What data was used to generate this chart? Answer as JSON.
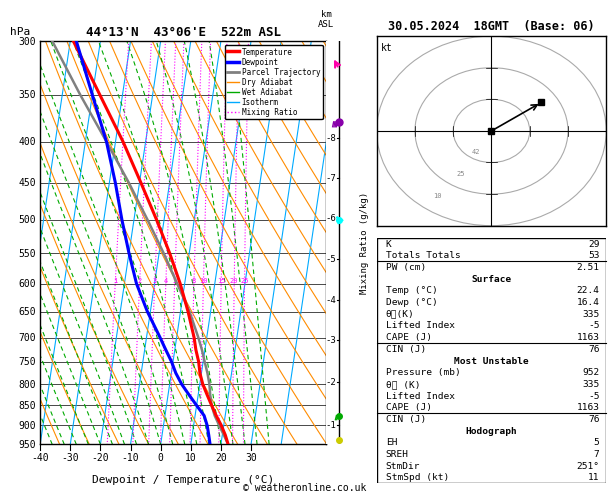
{
  "title_left": "44°13'N  43°06'E  522m ASL",
  "title_right": "30.05.2024  18GMT  (Base: 06)",
  "xlabel": "Dewpoint / Temperature (°C)",
  "ylabel_left": "hPa",
  "ylabel_right": "km\nASL",
  "ylabel_mix": "Mixing Ratio (g/kg)",
  "x_min": -40,
  "x_max": 35,
  "p_min": 300,
  "p_max": 950,
  "pressure_ticks": [
    300,
    350,
    400,
    450,
    500,
    550,
    600,
    650,
    700,
    750,
    800,
    850,
    900,
    950
  ],
  "x_ticks": [
    -40,
    -30,
    -20,
    -10,
    0,
    10,
    20,
    30
  ],
  "km_ticks": [
    1,
    2,
    3,
    4,
    5,
    6,
    7,
    8
  ],
  "km_pressures": [
    898,
    795,
    705,
    628,
    560,
    498,
    444,
    396
  ],
  "lcl_pressure": 888,
  "legend_labels": [
    "Temperature",
    "Dewpoint",
    "Parcel Trajectory",
    "Dry Adiabat",
    "Wet Adiabat",
    "Isotherm",
    "Mixing Ratio"
  ],
  "legend_colors": [
    "#ff0000",
    "#0000ff",
    "#808080",
    "#ff8c00",
    "#00aa00",
    "#00aaff",
    "#ff00ff"
  ],
  "legend_styles": [
    "solid",
    "solid",
    "solid",
    "solid",
    "solid",
    "solid",
    "dotted"
  ],
  "legend_widths": [
    2.5,
    2.5,
    2.0,
    1.0,
    1.0,
    1.0,
    1.0
  ],
  "temp_profile_p": [
    950,
    925,
    900,
    875,
    850,
    825,
    800,
    775,
    750,
    725,
    700,
    650,
    600,
    550,
    500,
    450,
    400,
    350,
    300
  ],
  "temp_profile_t": [
    22.4,
    21.0,
    19.2,
    17.0,
    15.0,
    13.0,
    11.0,
    9.5,
    8.5,
    7.0,
    5.8,
    2.5,
    -1.5,
    -6.5,
    -12.5,
    -19.5,
    -27.5,
    -37.5,
    -49.0
  ],
  "dewp_profile_p": [
    950,
    925,
    900,
    875,
    850,
    825,
    800,
    775,
    750,
    725,
    700,
    650,
    600,
    550,
    500,
    450,
    400,
    350,
    300
  ],
  "dewp_profile_t": [
    16.4,
    15.5,
    14.5,
    13.0,
    10.0,
    7.0,
    4.0,
    1.5,
    -0.5,
    -3.0,
    -5.5,
    -11.0,
    -16.0,
    -20.0,
    -24.0,
    -28.0,
    -33.0,
    -40.0,
    -48.0
  ],
  "parcel_profile_p": [
    950,
    925,
    900,
    875,
    850,
    825,
    800,
    775,
    750,
    725,
    700,
    650,
    600,
    550,
    500,
    450,
    400,
    350,
    300
  ],
  "parcel_profile_t": [
    22.4,
    20.5,
    18.5,
    16.5,
    15.0,
    14.0,
    13.2,
    12.0,
    10.5,
    9.0,
    7.2,
    3.0,
    -2.5,
    -8.5,
    -15.5,
    -23.5,
    -33.0,
    -44.0,
    -56.0
  ],
  "mixing_ratio_values": [
    1,
    2,
    3,
    4,
    5,
    8,
    10,
    15,
    20,
    25
  ],
  "mixing_ratio_label_p": 600,
  "skew_factor": 20.0,
  "data_K": 29,
  "data_TT": 53,
  "data_PW": 2.51,
  "data_surf_temp": 22.4,
  "data_surf_dewp": 16.4,
  "data_surf_theta": 335,
  "data_surf_li": -5,
  "data_surf_cape": 1163,
  "data_surf_cin": 76,
  "data_mu_pres": 952,
  "data_mu_theta": 335,
  "data_mu_li": -5,
  "data_mu_cape": 1163,
  "data_mu_cin": 76,
  "data_hodo_EH": 5,
  "data_hodo_SREH": 7,
  "data_hodo_StmDir": "251°",
  "data_hodo_StmSpd": 11,
  "copyright": "© weatheronline.co.uk",
  "background_color": "#ffffff",
  "plot_bg_color": "#ffffff"
}
